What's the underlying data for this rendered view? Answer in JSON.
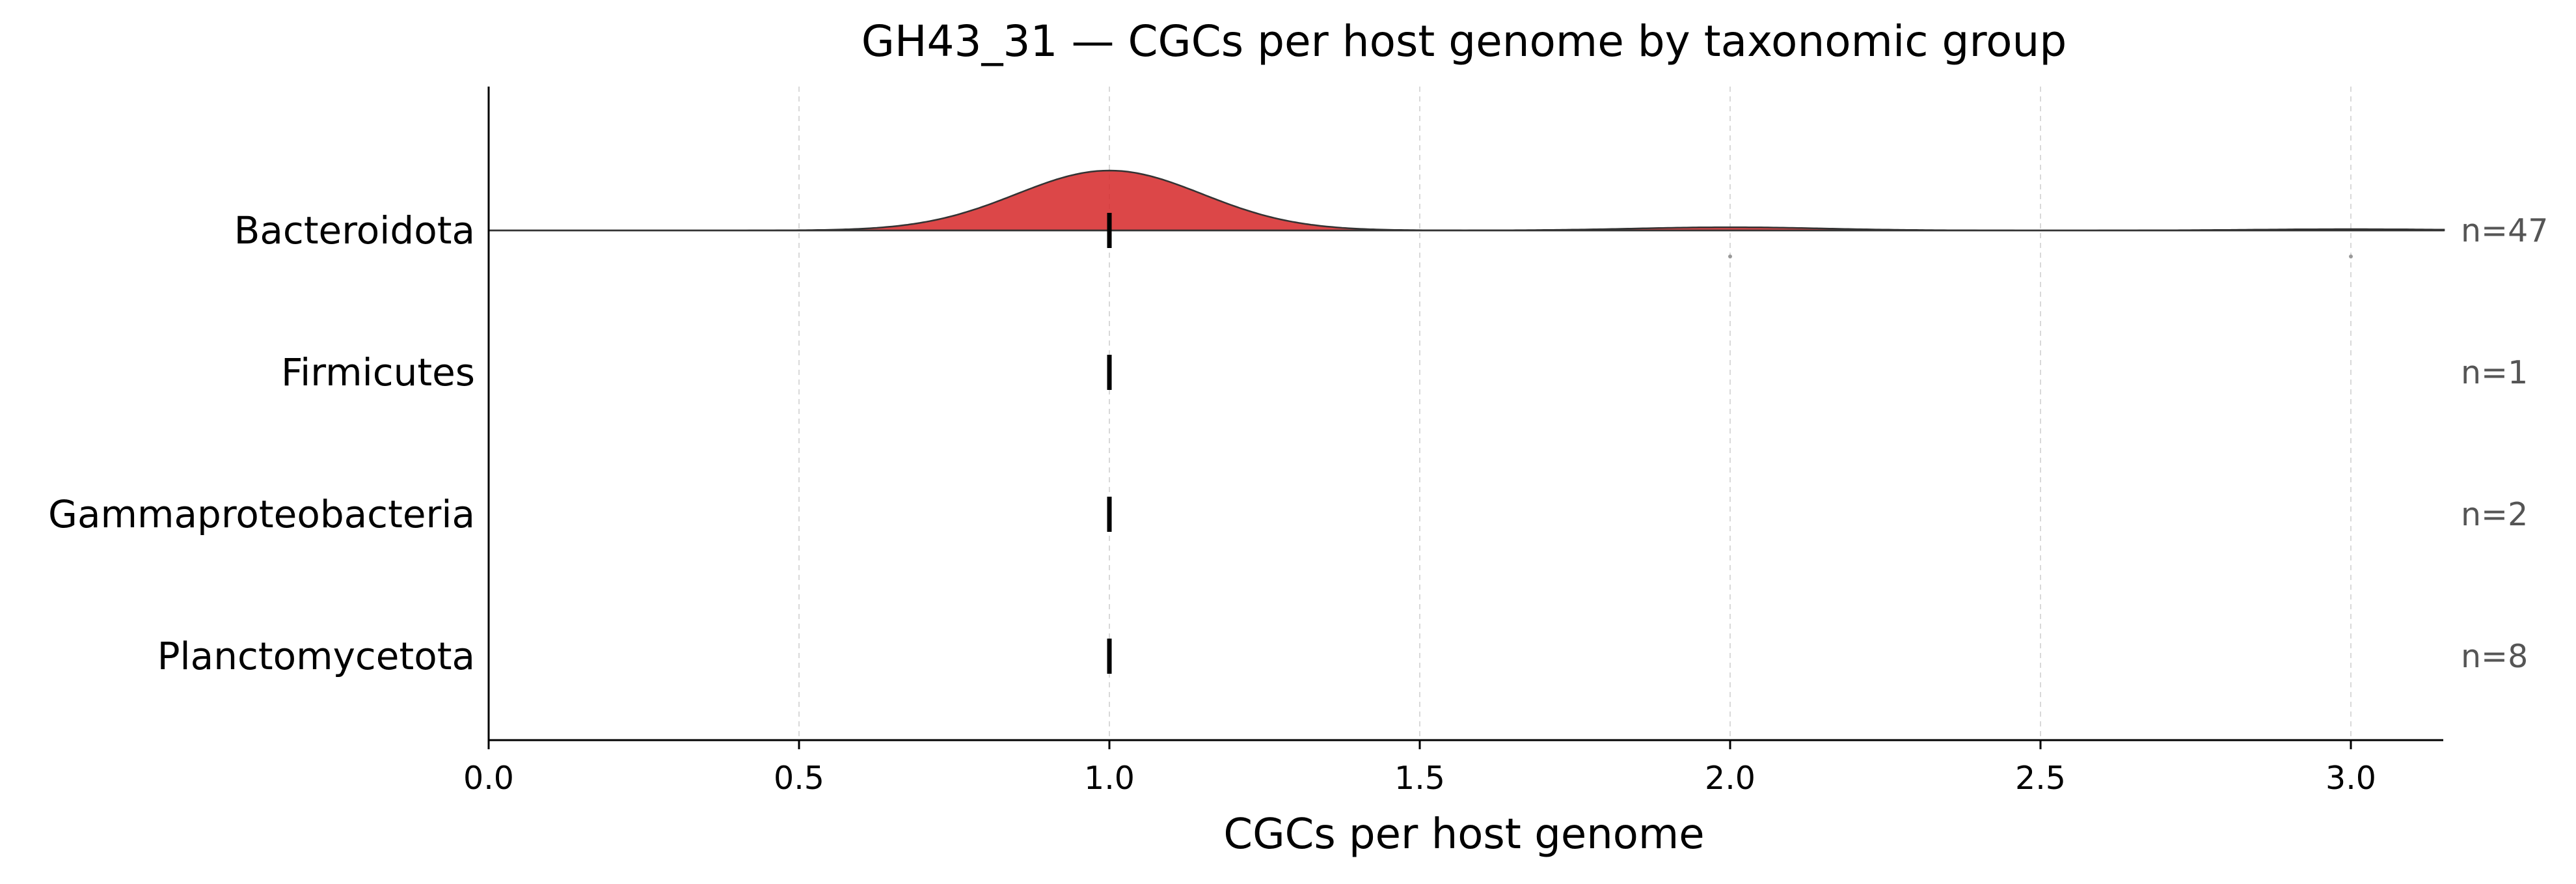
{
  "chart_data": {
    "type": "ridgeline",
    "title": "GH43_31 — CGCs per host genome by taxonomic group",
    "xlabel": "CGCs per host genome",
    "ylabel": "",
    "xlim": [
      0,
      3.15
    ],
    "x_ticks": [
      0.0,
      0.5,
      1.0,
      1.5,
      2.0,
      2.5,
      3.0
    ],
    "x_tick_labels": [
      "0.0",
      "0.5",
      "1.0",
      "1.5",
      "2.0",
      "2.5",
      "3.0"
    ],
    "grid": "vertical dashed",
    "fill_color": "#d62728",
    "groups": [
      {
        "name": "Bacteroidota",
        "n_label": "n=47",
        "median": 1.0,
        "density_components": [
          {
            "mean": 1.0,
            "weight": 0.93
          },
          {
            "mean": 2.0,
            "weight": 0.05
          },
          {
            "mean": 3.0,
            "weight": 0.02
          }
        ],
        "outliers": [
          2.0,
          3.0
        ]
      },
      {
        "name": "Firmicutes",
        "n_label": "n=1",
        "median": 1.0,
        "density_components": [],
        "outliers": []
      },
      {
        "name": "Gammaproteobacteria",
        "n_label": "n=2",
        "median": 1.0,
        "density_components": [],
        "outliers": []
      },
      {
        "name": "Planctomycetota",
        "n_label": "n=8",
        "median": 1.0,
        "density_components": [],
        "outliers": []
      }
    ]
  }
}
